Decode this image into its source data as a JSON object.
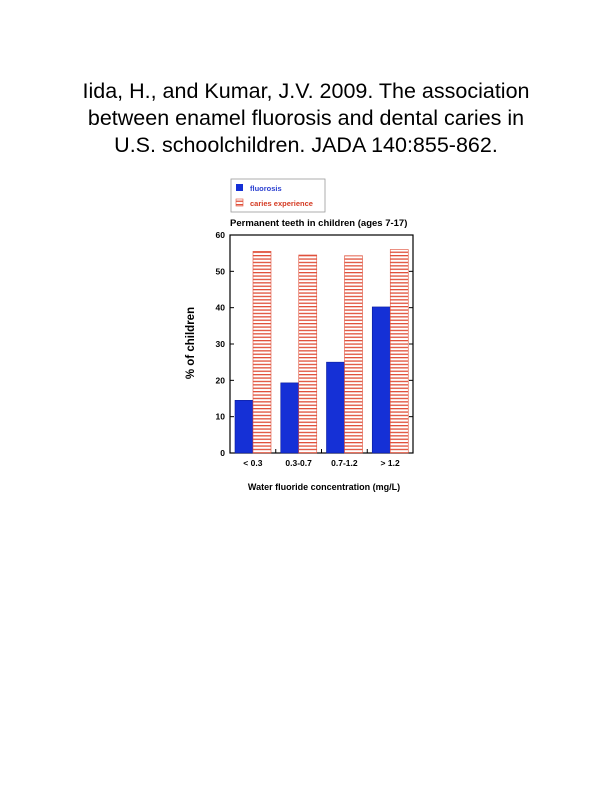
{
  "citation": {
    "line1": "Iida, H., and Kumar, J.V. 2009. The association",
    "line2": "between enamel fluorosis and dental caries in",
    "line3": "U.S. schoolchildren. JADA 140:855-862."
  },
  "colors": {
    "fluorosis": "#1530d6",
    "caries_stripe": "#e0503a",
    "legend_fluorosis_text": "#2a3fd0",
    "legend_caries_text": "#d43a22"
  },
  "chart_data": {
    "type": "bar",
    "title": "Permanent teeth in children (ages 7-17)",
    "xlabel": "Water fluoride concentration (mg/L)",
    "ylabel": "% of children",
    "ylim": [
      0,
      60
    ],
    "yticks": [
      "0",
      "10",
      "20",
      "30",
      "40",
      "50",
      "60"
    ],
    "categories": [
      "< 0.3",
      "0.3-0.7",
      "0.7-1.2",
      "> 1.2"
    ],
    "series": [
      {
        "name": "fluorosis",
        "values": [
          14.5,
          19.3,
          25,
          40.2
        ]
      },
      {
        "name": "caries experience",
        "values": [
          55.5,
          54.5,
          54.3,
          56
        ]
      }
    ],
    "legend_position": "above plot, left",
    "grid": false
  }
}
